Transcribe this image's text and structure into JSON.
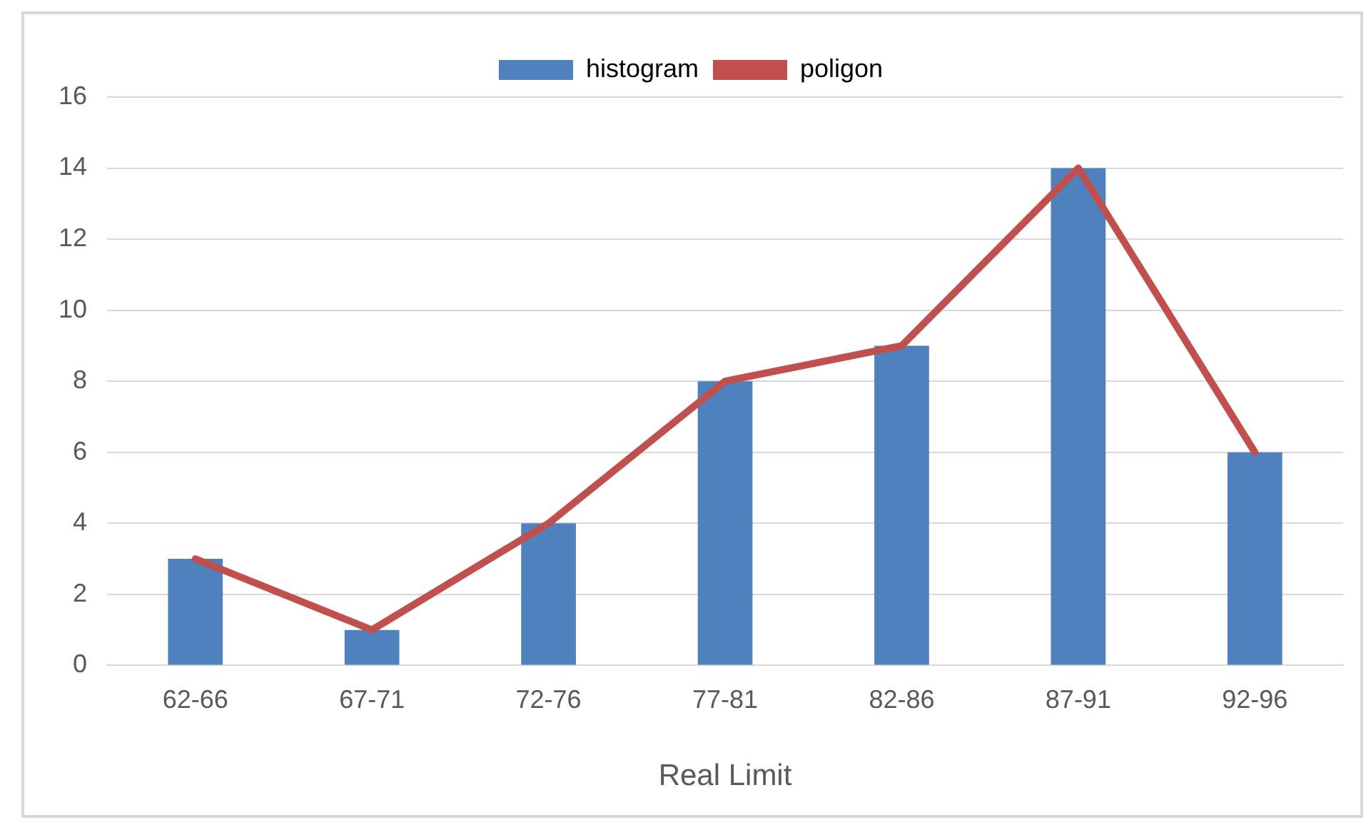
{
  "chart_data": {
    "type": "bar",
    "xlabel": "Real Limit",
    "categories": [
      "62-66",
      "67-71",
      "72-76",
      "77-81",
      "82-86",
      "87-91",
      "92-96"
    ],
    "series": [
      {
        "name": "histogram",
        "color": "#4f81bd",
        "values": [
          3,
          1,
          4,
          8,
          9,
          14,
          6
        ]
      },
      {
        "name": "poligon",
        "type": "line",
        "color": "#c0504d",
        "values": [
          3,
          1,
          4,
          8,
          9,
          14,
          6
        ]
      }
    ],
    "ylim": [
      0,
      16
    ],
    "yticks": [
      0,
      2,
      4,
      6,
      8,
      10,
      12,
      14,
      16
    ],
    "grid": "y",
    "legend": "top",
    "marker": "none"
  }
}
